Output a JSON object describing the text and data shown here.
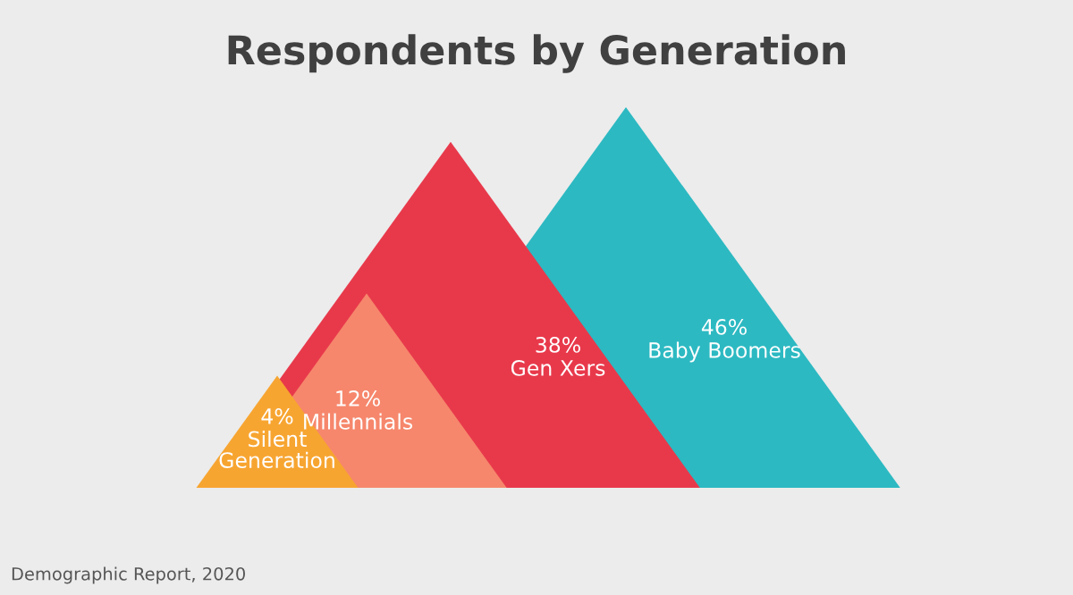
{
  "chart_data": {
    "type": "other",
    "title": "Respondents by Generation",
    "categories": [
      "Silent Generation",
      "Millennials",
      "Gen Xers",
      "Baby Boomers"
    ],
    "values": [
      4,
      12,
      38,
      46
    ],
    "colors": [
      "#f7a531",
      "#f6876c",
      "#e8394b",
      "#2cb9c2"
    ],
    "value_labels": [
      "4%",
      "12%",
      "38%",
      "46%"
    ],
    "data_labels": true,
    "annotations": [
      "Demographic Report, 2020"
    ]
  }
}
